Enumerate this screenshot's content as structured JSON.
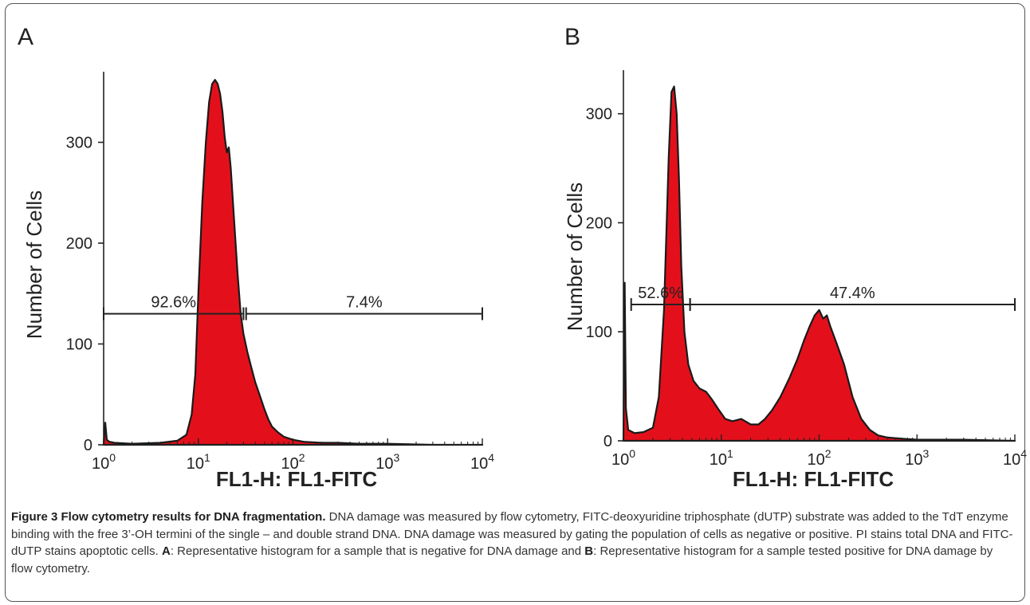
{
  "chart_data": [
    {
      "panel_label": "A",
      "type": "area",
      "xscale": "log",
      "xlim": [
        1,
        10000
      ],
      "ylim": [
        0,
        370
      ],
      "x_ticks": [
        {
          "b": "10",
          "e": "0"
        },
        {
          "b": "10",
          "e": "1"
        },
        {
          "b": "10",
          "e": "2"
        },
        {
          "b": "10",
          "e": "3"
        },
        {
          "b": "10",
          "e": "4"
        }
      ],
      "y_ticks": [
        "0",
        "100",
        "200",
        "300"
      ],
      "y_tick_values": [
        0,
        100,
        200,
        300
      ],
      "xlabel": "FL1-H: FL1-FITC",
      "ylabel": "Number of Cells",
      "fill_color": "#e3101b",
      "series": [
        {
          "x": [
            1,
            1.04,
            1.08,
            1.15,
            1.3,
            2,
            4,
            6,
            7.5,
            8.5,
            9.3,
            10,
            11,
            12,
            13,
            14,
            15,
            16,
            17,
            18,
            19,
            20,
            21,
            22,
            24,
            26,
            28,
            30,
            33,
            36,
            40,
            45,
            50,
            55,
            60,
            70,
            80,
            100,
            130,
            200,
            300,
            500,
            1000,
            3000,
            10000
          ],
          "y": [
            0,
            22,
            5,
            3,
            2,
            1,
            2,
            4,
            10,
            30,
            70,
            150,
            240,
            300,
            340,
            358,
            362,
            358,
            348,
            330,
            305,
            290,
            295,
            275,
            220,
            170,
            130,
            110,
            92,
            78,
            62,
            48,
            35,
            25,
            18,
            12,
            8,
            5,
            3,
            2,
            2,
            1,
            1,
            0,
            0
          ]
        }
      ],
      "gates": [
        {
          "label": "92.6%",
          "x_start": 1,
          "x_end": 30,
          "y": 130
        },
        {
          "label": "7.4%",
          "x_start": 32,
          "x_end": 10000,
          "y": 130
        }
      ]
    },
    {
      "panel_label": "B",
      "type": "area",
      "xscale": "log",
      "xlim": [
        1,
        10000
      ],
      "ylim": [
        0,
        340
      ],
      "x_ticks": [
        {
          "b": "10",
          "e": "0"
        },
        {
          "b": "10",
          "e": "1"
        },
        {
          "b": "10",
          "e": "2"
        },
        {
          "b": "10",
          "e": "3"
        },
        {
          "b": "10",
          "e": "4"
        }
      ],
      "y_ticks": [
        "0",
        "100",
        "200",
        "300"
      ],
      "y_tick_values": [
        0,
        100,
        200,
        300
      ],
      "xlabel": "FL1-H: FL1-FITC",
      "ylabel": "Number of Cells",
      "fill_color": "#e3101b",
      "series": [
        {
          "x": [
            1,
            1.03,
            1.06,
            1.12,
            1.3,
            1.6,
            2,
            2.3,
            2.6,
            2.9,
            3.1,
            3.3,
            3.5,
            3.7,
            3.9,
            4.2,
            4.6,
            5.2,
            6,
            7,
            8,
            9.5,
            11,
            13,
            16,
            20,
            24,
            28,
            33,
            40,
            50,
            60,
            70,
            80,
            90,
            100,
            110,
            120,
            130,
            150,
            180,
            220,
            270,
            330,
            400,
            500,
            700,
            1000,
            3000,
            10000
          ],
          "y": [
            0,
            145,
            30,
            10,
            7,
            8,
            12,
            40,
            120,
            260,
            320,
            325,
            300,
            240,
            160,
            100,
            70,
            55,
            48,
            45,
            38,
            28,
            20,
            18,
            20,
            15,
            15,
            20,
            28,
            40,
            58,
            75,
            92,
            105,
            115,
            120,
            112,
            115,
            105,
            90,
            70,
            40,
            20,
            10,
            5,
            3,
            2,
            1,
            1,
            0
          ]
        }
      ],
      "gates": [
        {
          "label": "52.6%",
          "x_start": 1.2,
          "x_end": 4.8,
          "y": 125
        },
        {
          "label": "47.4%",
          "x_start": 4.8,
          "x_end": 10000,
          "y": 125
        }
      ]
    }
  ],
  "caption": {
    "title": "Figure 3 Flow cytometry results for DNA fragmentation.",
    "text_part1": " DNA damage was measured by flow cytometry, FITC-deoxyuridine triphosphate (dUTP) substrate was added to the TdT enzyme binding with the free 3’-OH termini of the single – and double strand DNA. DNA damage was measured by gating the population of cells as negative or positive. PI stains total DNA and FITC-dUTP stains apoptotic cells. ",
    "label_a": "A",
    "text_part2": ": Representative histogram for a sample that is negative for DNA damage and ",
    "label_b": "B",
    "text_part3": ": Representative histogram for a sample tested positive for DNA damage by flow cytometry."
  }
}
